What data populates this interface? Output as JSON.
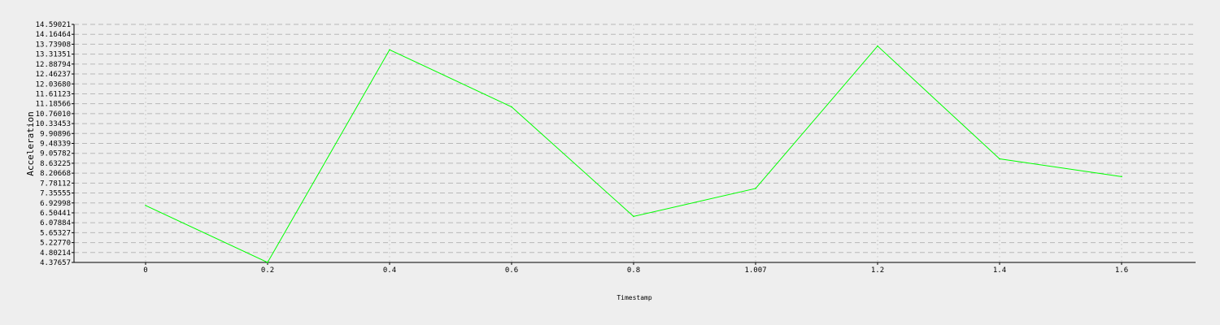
{
  "chart_data": {
    "type": "line",
    "title": "",
    "xlabel": "Timestamp",
    "ylabel": "Acceleration",
    "categories": [
      "0",
      "0.2",
      "0.4",
      "0.6",
      "0.8",
      "1.007",
      "1.2",
      "1.4",
      "1.6"
    ],
    "series": [
      {
        "color": "#00ff00",
        "values": [
          6.82,
          4.37657,
          13.5,
          11.05,
          6.35,
          7.55,
          13.66,
          8.82,
          8.06
        ]
      }
    ],
    "ylim": [
      4.37657,
      14.59021
    ],
    "yticks": [
      "4.37657",
      "4.80214",
      "5.22770",
      "5.65327",
      "6.07884",
      "6.50441",
      "6.92998",
      "7.35555",
      "7.78112",
      "8.20668",
      "8.63225",
      "9.05782",
      "9.48339",
      "9.90896",
      "10.33453",
      "10.76010",
      "11.18566",
      "11.61123",
      "12.03680",
      "12.46237",
      "12.88794",
      "13.31351",
      "13.73908",
      "14.16464",
      "14.59021"
    ],
    "grid": true,
    "legend": "none"
  }
}
